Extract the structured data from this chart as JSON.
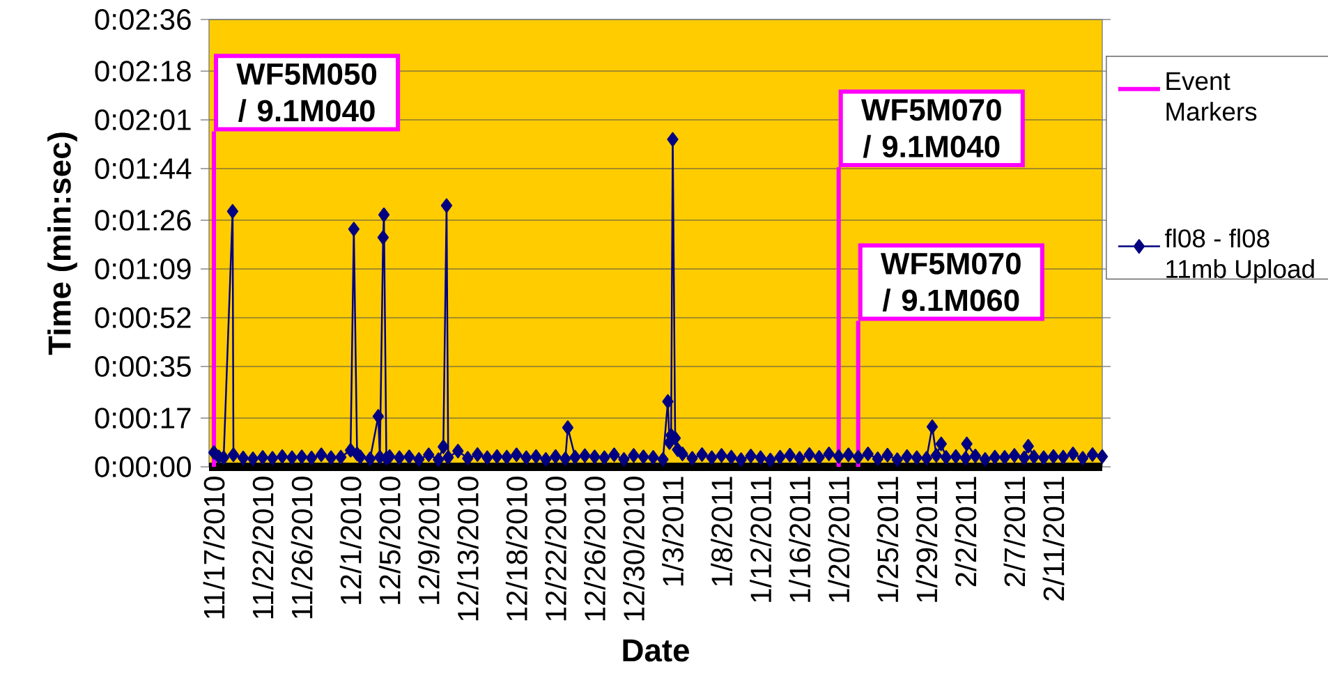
{
  "chart_data": {
    "type": "line",
    "xlabel": "Date",
    "ylabel": "Time (min:sec)",
    "xlim": [
      "2010-11-16T12:00",
      "2011-02-16"
    ],
    "xticks": [
      {
        "value": "2010-11-17",
        "label": "11/17/2010"
      },
      {
        "value": "2010-11-22",
        "label": "11/22/2010"
      },
      {
        "value": "2010-11-26",
        "label": "11/26/2010"
      },
      {
        "value": "2010-12-01",
        "label": "12/1/2010"
      },
      {
        "value": "2010-12-05",
        "label": "12/5/2010"
      },
      {
        "value": "2010-12-09",
        "label": "12/9/2010"
      },
      {
        "value": "2010-12-13",
        "label": "12/13/2010"
      },
      {
        "value": "2010-12-18",
        "label": "12/18/2010"
      },
      {
        "value": "2010-12-22",
        "label": "12/22/2010"
      },
      {
        "value": "2010-12-26",
        "label": "12/26/2010"
      },
      {
        "value": "2010-12-30",
        "label": "12/30/2010"
      },
      {
        "value": "2011-01-03",
        "label": "1/3/2011"
      },
      {
        "value": "2011-01-08",
        "label": "1/8/2011"
      },
      {
        "value": "2011-01-12",
        "label": "1/12/2011"
      },
      {
        "value": "2011-01-16",
        "label": "1/16/2011"
      },
      {
        "value": "2011-01-20",
        "label": "1/20/2011"
      },
      {
        "value": "2011-01-25",
        "label": "1/25/2011"
      },
      {
        "value": "2011-01-29",
        "label": "1/29/2011"
      },
      {
        "value": "2011-02-02",
        "label": "2/2/2011"
      },
      {
        "value": "2011-02-07",
        "label": "2/7/2011"
      },
      {
        "value": "2011-02-11",
        "label": "2/11/2011"
      }
    ],
    "ylim": [
      0,
      156
    ],
    "yticks": [
      {
        "value": 0,
        "label": "0:00:00"
      },
      {
        "value": 17,
        "label": "0:00:17"
      },
      {
        "value": 35,
        "label": "0:00:35"
      },
      {
        "value": 52,
        "label": "0:00:52"
      },
      {
        "value": 69,
        "label": "0:01:09"
      },
      {
        "value": 86,
        "label": "0:01:26"
      },
      {
        "value": 104,
        "label": "0:01:44"
      },
      {
        "value": 121,
        "label": "0:02:01"
      },
      {
        "value": 138,
        "label": "0:02:18"
      },
      {
        "value": 156,
        "label": "0:02:36"
      }
    ],
    "grid": "y",
    "legend": "right",
    "marker": "diamond",
    "series": [
      {
        "name": "Event Markers",
        "color": "#ff00ff",
        "marker": "none",
        "x": [
          "2010-11-17",
          "2010-11-17",
          null,
          "2011-01-20",
          "2011-01-20",
          null,
          "2011-01-22",
          "2011-01-22"
        ],
        "values": [
          0,
          117,
          null,
          0,
          104.5,
          null,
          0,
          50.9
        ]
      },
      {
        "name": "fl08 - fl08 11mb Upload",
        "color": "#000080",
        "x": [
          "2010-11-17T00:00",
          "2010-11-17T12:00",
          "2010-11-18",
          "2010-11-18T22:00",
          "2010-11-19",
          "2010-11-20",
          "2010-11-21",
          "2010-11-22",
          "2010-11-23",
          "2010-11-24",
          "2010-11-25",
          "2010-11-26",
          "2010-11-27",
          "2010-11-28",
          "2010-11-29",
          "2010-11-30",
          "2010-12-01T00:00",
          "2010-12-01T08:00",
          "2010-12-01T16:00",
          "2010-12-02",
          "2010-12-03",
          "2010-12-03T20:00",
          "2010-12-04T00:00",
          "2010-12-04T08:00",
          "2010-12-04T10:00",
          "2010-12-04T16:00",
          "2010-12-05",
          "2010-12-06",
          "2010-12-07",
          "2010-12-08",
          "2010-12-09",
          "2010-12-10",
          "2010-12-10T12:00",
          "2010-12-10T20:00",
          "2010-12-11",
          "2010-12-12",
          "2010-12-13",
          "2010-12-14",
          "2010-12-15",
          "2010-12-16",
          "2010-12-17",
          "2010-12-18",
          "2010-12-19",
          "2010-12-20",
          "2010-12-21",
          "2010-12-22",
          "2010-12-23",
          "2010-12-23T06:00",
          "2010-12-24",
          "2010-12-25",
          "2010-12-26",
          "2010-12-27",
          "2010-12-28",
          "2010-12-29",
          "2010-12-30",
          "2010-12-31",
          "2011-01-01",
          "2011-01-02",
          "2011-01-02T12:00",
          "2011-01-02T16:00",
          "2011-01-02T20:00",
          "2011-01-03",
          "2011-01-03T06:00",
          "2011-01-03T12:00",
          "2011-01-04",
          "2011-01-05",
          "2011-01-06",
          "2011-01-07",
          "2011-01-08",
          "2011-01-09",
          "2011-01-10",
          "2011-01-11",
          "2011-01-12",
          "2011-01-13",
          "2011-01-14",
          "2011-01-15",
          "2011-01-16",
          "2011-01-17",
          "2011-01-18",
          "2011-01-19",
          "2011-01-20",
          "2011-01-21",
          "2011-01-22",
          "2011-01-23",
          "2011-01-24",
          "2011-01-25",
          "2011-01-26",
          "2011-01-27",
          "2011-01-28",
          "2011-01-29",
          "2011-01-29T14:00",
          "2011-01-30",
          "2011-01-30T12:00",
          "2011-01-31",
          "2011-02-01",
          "2011-02-02",
          "2011-02-02T03:00",
          "2011-02-03",
          "2011-02-04",
          "2011-02-05",
          "2011-02-06",
          "2011-02-07",
          "2011-02-08",
          "2011-02-08T10:00",
          "2011-02-09",
          "2011-02-10",
          "2011-02-11",
          "2011-02-12",
          "2011-02-13",
          "2011-02-14",
          "2011-02-15",
          "2011-02-16"
        ],
        "values": [
          5.0,
          3.5,
          3.2,
          89.1,
          4.2,
          3.1,
          2.8,
          3.3,
          3.0,
          3.6,
          3.2,
          3.5,
          3.1,
          4.2,
          3.2,
          3.4,
          5.8,
          82.9,
          4.5,
          3.5,
          2.8,
          17.6,
          3.4,
          80.0,
          87.9,
          3.0,
          3.6,
          3.2,
          3.5,
          2.6,
          4.2,
          2.5,
          7.0,
          91.1,
          3.3,
          5.5,
          3.0,
          4.3,
          3.2,
          3.6,
          3.4,
          4.2,
          3.2,
          3.6,
          2.6,
          3.6,
          2.8,
          13.7,
          3.4,
          3.9,
          3.5,
          3.2,
          4.2,
          2.6,
          4.0,
          3.5,
          3.3,
          2.6,
          22.8,
          8.5,
          11.0,
          114.2,
          10.0,
          6.0,
          4.5,
          3.0,
          4.3,
          3.2,
          4.0,
          3.4,
          2.5,
          3.8,
          3.2,
          2.4,
          3.4,
          4.1,
          3.0,
          4.3,
          3.3,
          4.5,
          3.6,
          4.2,
          3.4,
          4.5,
          2.8,
          4.1,
          2.5,
          3.6,
          3.2,
          3.0,
          14.0,
          4.0,
          8.0,
          3.3,
          3.6,
          3.0,
          8.0,
          3.8,
          2.6,
          3.4,
          3.3,
          4.0,
          3.1,
          7.2,
          3.5,
          3.2,
          3.6,
          3.4,
          4.5,
          3.0,
          4.3,
          3.6
        ]
      }
    ],
    "annotations": [
      {
        "text": "WF5M050 / 9.1M040",
        "x": "2010-11-17",
        "y": 117
      },
      {
        "text": "WF5M070 / 9.1M040",
        "x": "2011-01-20",
        "y": 104.5
      },
      {
        "text": "WF5M070 / 9.1M060",
        "x": "2011-01-22",
        "y": 50.9
      }
    ]
  }
}
